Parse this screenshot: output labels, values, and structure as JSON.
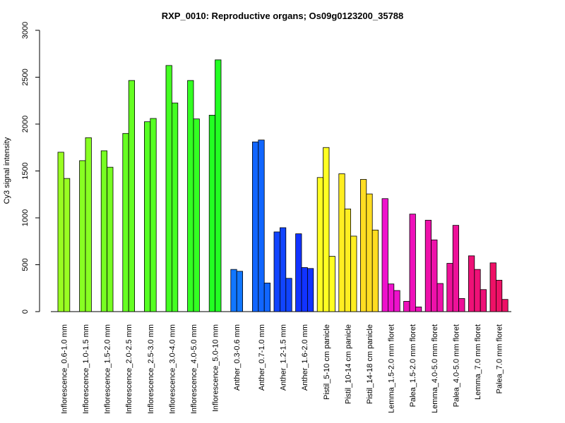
{
  "chart_data": {
    "type": "bar",
    "title": "RXP_0010: Reproductive organs; Os09g0123200_35788",
    "xlabel": "",
    "ylabel": "Cy3 signal intensity",
    "ylim": [
      0,
      3000
    ],
    "yticks": [
      0,
      500,
      1000,
      1500,
      2000,
      2500,
      3000
    ],
    "grid": false,
    "groups": [
      {
        "label": "Inflorescence_0.6-1.0 mm",
        "color": "#99ff22",
        "values": [
          1700,
          1420
        ]
      },
      {
        "label": "Inflorescence_1.0-1.5 mm",
        "color": "#88ff22",
        "values": [
          1610,
          1855
        ]
      },
      {
        "label": "Inflorescence_1.5-2.0 mm",
        "color": "#77ff22",
        "values": [
          1715,
          1540
        ]
      },
      {
        "label": "Inflorescence_2.0-2.5 mm",
        "color": "#66ff22",
        "values": [
          1900,
          2465
        ]
      },
      {
        "label": "Inflorescence_2.5-3.0 mm",
        "color": "#55ff22",
        "values": [
          2025,
          2060
        ]
      },
      {
        "label": "Inflorescence_3.0-4.0 mm",
        "color": "#44ff22",
        "values": [
          2625,
          2225
        ]
      },
      {
        "label": "Inflorescence_4.0-5.0 mm",
        "color": "#33ff22",
        "values": [
          2465,
          2055
        ]
      },
      {
        "label": "Inflorescence_5.0-10 mm",
        "color": "#22ff22",
        "values": [
          2095,
          2685
        ]
      },
      {
        "label": "Anther_0.3-0.6 mm",
        "color": "#1177ff",
        "values": [
          450,
          430
        ]
      },
      {
        "label": "Anther_0.7-1.0 mm",
        "color": "#1166ff",
        "values": [
          1810,
          1830,
          305
        ]
      },
      {
        "label": "Anther_1.2-1.5 mm",
        "color": "#1144ff",
        "values": [
          850,
          895,
          355
        ]
      },
      {
        "label": "Anther_1.6-2.0 mm",
        "color": "#1133ff",
        "values": [
          830,
          470,
          460
        ]
      },
      {
        "label": "Pistil_5-10 cm panicle",
        "color": "#ffff22",
        "values": [
          1430,
          1750,
          590
        ]
      },
      {
        "label": "Pistil_10-14 cm panicle",
        "color": "#ffee22",
        "values": [
          1470,
          1095,
          805
        ]
      },
      {
        "label": "Pistil_14-18 cm panicle",
        "color": "#ffdd22",
        "values": [
          1410,
          1255,
          870
        ]
      },
      {
        "label": "Lemma_1.5-2.0 mm floret",
        "color": "#ee11cc",
        "values": [
          1205,
          295,
          225
        ]
      },
      {
        "label": "Palea_1.5-2.0 mm floret",
        "color": "#ee11bb",
        "values": [
          110,
          1040,
          50
        ]
      },
      {
        "label": "Lemma_4.0-5.0 mm floret",
        "color": "#ee11aa",
        "values": [
          975,
          765,
          300
        ]
      },
      {
        "label": "Palea_4.0-5.0 mm floret",
        "color": "#ee1199",
        "values": [
          515,
          920,
          140
        ]
      },
      {
        "label": "Lemma_7.0 mm floret",
        "color": "#ee1177",
        "values": [
          595,
          450,
          235
        ]
      },
      {
        "label": "Palea_7.0 mm floret",
        "color": "#ee1166",
        "values": [
          520,
          335,
          130
        ]
      }
    ]
  }
}
